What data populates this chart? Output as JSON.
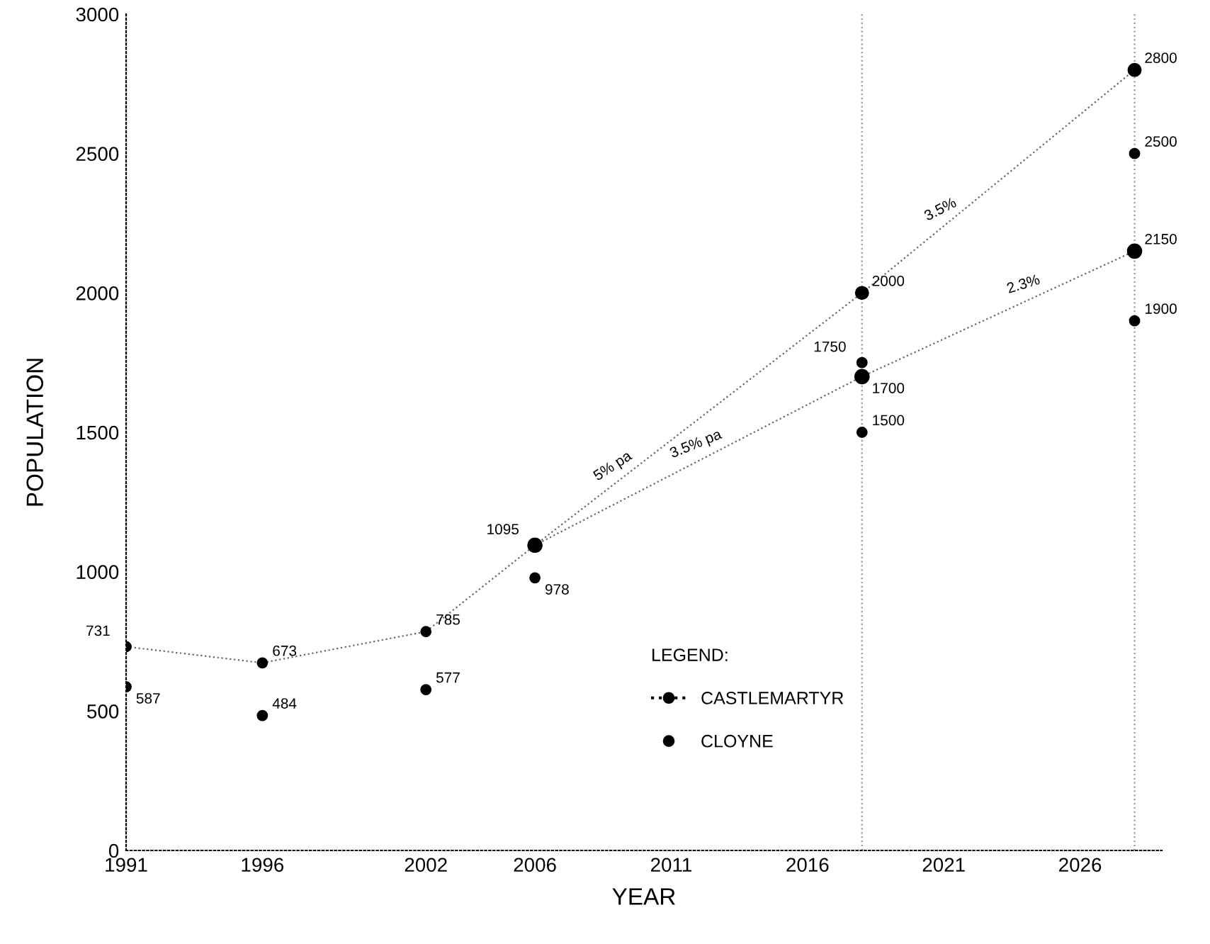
{
  "chart_data": {
    "type": "scatter",
    "xlabel": "YEAR",
    "ylabel": "POPULATION",
    "legend_title": "LEGEND:",
    "xlim": [
      1991,
      2029
    ],
    "xticks": [
      1991,
      1996,
      2002,
      2006,
      2011,
      2016,
      2021,
      2026
    ],
    "ylim": [
      0,
      3000
    ],
    "yticks": [
      0,
      500,
      1000,
      1500,
      2000,
      2500,
      3000
    ],
    "grid": false,
    "legend": "bottom",
    "marker": "circle",
    "series": [
      {
        "name": "CASTLEMARTYR",
        "type": "line",
        "line_style": "dotted",
        "color": "#000000",
        "x": [
          1991,
          1996,
          2002,
          2006
        ],
        "values": [
          731,
          673,
          785,
          1095
        ],
        "value_labels": [
          "731",
          "673",
          "785",
          "1095"
        ]
      },
      {
        "name": "CLOYNE",
        "color": "#000000",
        "x": [
          1991,
          1996,
          2002,
          2006
        ],
        "values": [
          587,
          484,
          577,
          978
        ],
        "value_labels": [
          "587",
          "484",
          "577",
          "978"
        ]
      },
      {
        "type": "line",
        "line_style": "dotted",
        "color": "#000000",
        "x": [
          2006,
          2018,
          2028
        ],
        "values": [
          1095,
          2000,
          2800
        ],
        "value_labels": [
          null,
          "2000",
          "2800"
        ]
      },
      {
        "type": "line",
        "line_style": "dotted",
        "color": "#000000",
        "x": [
          2006,
          2018,
          2028
        ],
        "values": [
          1095,
          1700,
          2150
        ],
        "value_labels": [
          null,
          "1700",
          "2150"
        ]
      },
      {
        "color": "#000000",
        "x": [
          2018,
          2018,
          2028,
          2028
        ],
        "values": [
          1750,
          1500,
          2500,
          1900
        ],
        "value_labels": [
          "1750",
          "1500",
          "2500",
          "1900"
        ]
      }
    ],
    "ref_lines": [
      {
        "axis": "x",
        "value": 2018,
        "color": "#999999",
        "line_style": "dotted"
      },
      {
        "axis": "x",
        "value": 2028,
        "color": "#999999",
        "line_style": "dotted"
      }
    ],
    "annotations": [
      {
        "text": "5% pa",
        "x": 2009,
        "y": 1321
      },
      {
        "text": "3.5% pa",
        "x": 2012,
        "y": 1398
      },
      {
        "text": "3.5%",
        "x": 2021,
        "y": 2240
      },
      {
        "text": "2.3%",
        "x": 2024,
        "y": 1970
      }
    ]
  }
}
